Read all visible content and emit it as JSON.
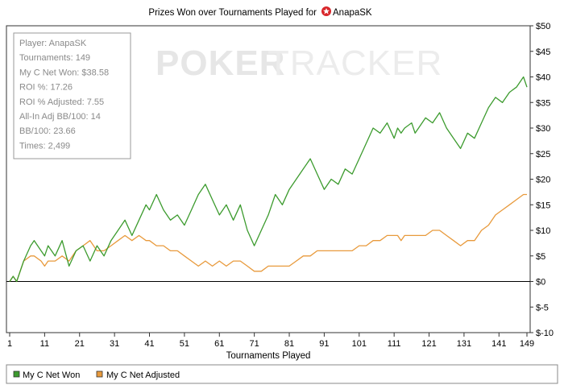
{
  "chart_data": {
    "type": "line",
    "title": "Prizes Won over Tournaments Played for",
    "title_player": "AnapaSK",
    "xlabel": "Tournaments Played",
    "ylabel": "",
    "x_ticks": [
      1,
      11,
      21,
      31,
      41,
      51,
      61,
      71,
      81,
      91,
      101,
      111,
      121,
      131,
      141,
      149
    ],
    "y_ticks": [
      "$50",
      "$45",
      "$40",
      "$35",
      "$30",
      "$25",
      "$20",
      "$15",
      "$10",
      "$5",
      "$0",
      "$-5",
      "$-10"
    ],
    "y_tick_values": [
      50,
      45,
      40,
      35,
      30,
      25,
      20,
      15,
      10,
      5,
      0,
      -5,
      -10
    ],
    "xlim": [
      0,
      149
    ],
    "ylim": [
      -10,
      50
    ],
    "grid": false,
    "legend_position": "bottom-left",
    "series": [
      {
        "name": "My C Net Won",
        "color": "#3c9b2e",
        "x": [
          1,
          2,
          3,
          5,
          7,
          8,
          10,
          11,
          12,
          14,
          16,
          18,
          20,
          22,
          24,
          26,
          28,
          30,
          32,
          34,
          36,
          38,
          40,
          41,
          43,
          45,
          47,
          49,
          51,
          53,
          55,
          57,
          59,
          61,
          63,
          65,
          67,
          69,
          71,
          73,
          75,
          77,
          79,
          81,
          83,
          85,
          87,
          89,
          91,
          93,
          95,
          97,
          99,
          101,
          103,
          105,
          107,
          109,
          111,
          112,
          113,
          114,
          116,
          117,
          118,
          120,
          122,
          124,
          126,
          128,
          130,
          132,
          134,
          136,
          138,
          140,
          142,
          144,
          146,
          148,
          149
        ],
        "y": [
          0,
          1,
          0,
          4,
          7,
          8,
          6,
          5,
          7,
          5,
          8,
          3,
          6,
          7,
          4,
          7,
          5,
          8,
          10,
          12,
          9,
          12,
          15,
          14,
          17,
          14,
          12,
          13,
          11,
          14,
          17,
          19,
          16,
          13,
          15,
          12,
          15,
          10,
          7,
          10,
          13,
          17,
          15,
          18,
          20,
          22,
          24,
          21,
          18,
          20,
          19,
          22,
          21,
          24,
          27,
          30,
          29,
          31,
          28,
          30,
          29,
          30,
          31,
          29,
          30,
          32,
          31,
          33,
          30,
          28,
          26,
          29,
          28,
          31,
          34,
          36,
          35,
          37,
          38,
          40,
          38
        ]
      },
      {
        "name": "My C Net Adjusted",
        "color": "#e89a3c",
        "x": [
          1,
          2,
          3,
          5,
          7,
          8,
          10,
          11,
          12,
          14,
          16,
          18,
          20,
          22,
          24,
          26,
          28,
          30,
          32,
          34,
          36,
          38,
          40,
          41,
          43,
          45,
          47,
          49,
          51,
          53,
          55,
          57,
          59,
          61,
          63,
          65,
          67,
          69,
          71,
          73,
          75,
          77,
          79,
          81,
          83,
          85,
          87,
          89,
          91,
          93,
          95,
          97,
          99,
          101,
          103,
          105,
          107,
          109,
          111,
          112,
          113,
          114,
          116,
          117,
          118,
          120,
          122,
          124,
          126,
          128,
          130,
          132,
          134,
          136,
          138,
          140,
          142,
          144,
          146,
          148,
          149
        ],
        "y": [
          0,
          1,
          0,
          4,
          5,
          5,
          4,
          3,
          4,
          4,
          5,
          4,
          6,
          7,
          8,
          6,
          6,
          7,
          8,
          9,
          8,
          9,
          8,
          8,
          7,
          7,
          6,
          6,
          5,
          4,
          3,
          4,
          3,
          4,
          3,
          4,
          4,
          3,
          2,
          2,
          3,
          3,
          3,
          3,
          4,
          5,
          5,
          6,
          6,
          6,
          6,
          6,
          6,
          7,
          7,
          8,
          8,
          9,
          9,
          9,
          8,
          9,
          9,
          9,
          9,
          9,
          10,
          10,
          9,
          8,
          7,
          8,
          8,
          10,
          11,
          13,
          14,
          15,
          16,
          17,
          17
        ]
      }
    ],
    "stats": [
      "Player: AnapaSK",
      "Tournaments: 149",
      "My C Net Won: $38.58",
      "ROI %: 17.26",
      "ROI % Adjusted: 7.55",
      "All-In Adj BB/100: 14",
      "BB/100: 23.66",
      "Times: 2,499"
    ],
    "watermark": {
      "bold": "POKER",
      "light": "TRACKER"
    }
  }
}
